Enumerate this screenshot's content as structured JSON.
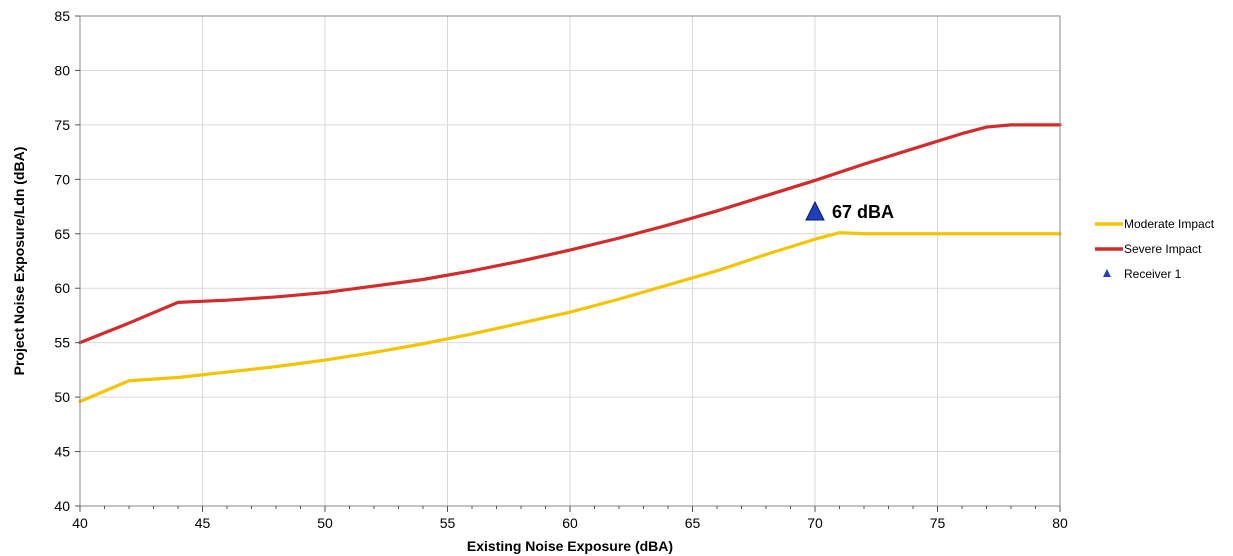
{
  "chart_data": {
    "type": "line",
    "xlabel": "Existing Noise Exposure (dBA)",
    "ylabel": "Project Noise Exposure/Ldn (dBA)",
    "xlim": [
      40,
      80
    ],
    "ylim": [
      40,
      85
    ],
    "xticks": [
      40,
      45,
      50,
      55,
      60,
      65,
      70,
      75,
      80
    ],
    "yticks": [
      40,
      45,
      50,
      55,
      60,
      65,
      70,
      75,
      80,
      85
    ],
    "grid": true,
    "legend_position": "right",
    "series": [
      {
        "name": "Moderate Impact",
        "color": "#F5C400",
        "x": [
          40,
          42,
          44,
          46,
          48,
          50,
          52,
          54,
          56,
          58,
          60,
          62,
          64,
          66,
          68,
          70,
          71,
          72,
          75,
          78,
          80
        ],
        "y": [
          49.6,
          51.5,
          51.8,
          52.3,
          52.8,
          53.4,
          54.1,
          54.9,
          55.8,
          56.8,
          57.8,
          59.0,
          60.3,
          61.6,
          63.1,
          64.5,
          65.1,
          65.0,
          65.0,
          65.0,
          65.0
        ]
      },
      {
        "name": "Severe Impact",
        "color": "#D22B2B",
        "x": [
          40,
          42,
          44,
          46,
          48,
          50,
          52,
          54,
          56,
          58,
          60,
          62,
          64,
          66,
          68,
          70,
          72,
          74,
          76,
          77,
          78,
          80
        ],
        "y": [
          55.0,
          56.8,
          58.7,
          58.9,
          59.2,
          59.6,
          60.2,
          60.8,
          61.6,
          62.5,
          63.5,
          64.6,
          65.8,
          67.1,
          68.5,
          69.9,
          71.4,
          72.8,
          74.2,
          74.8,
          75.0,
          75.0
        ]
      },
      {
        "name": "Receiver 1",
        "color": "#1F3FBF",
        "marker": "triangle",
        "x": [
          70
        ],
        "y": [
          67
        ],
        "label": "67 dBA"
      }
    ]
  }
}
